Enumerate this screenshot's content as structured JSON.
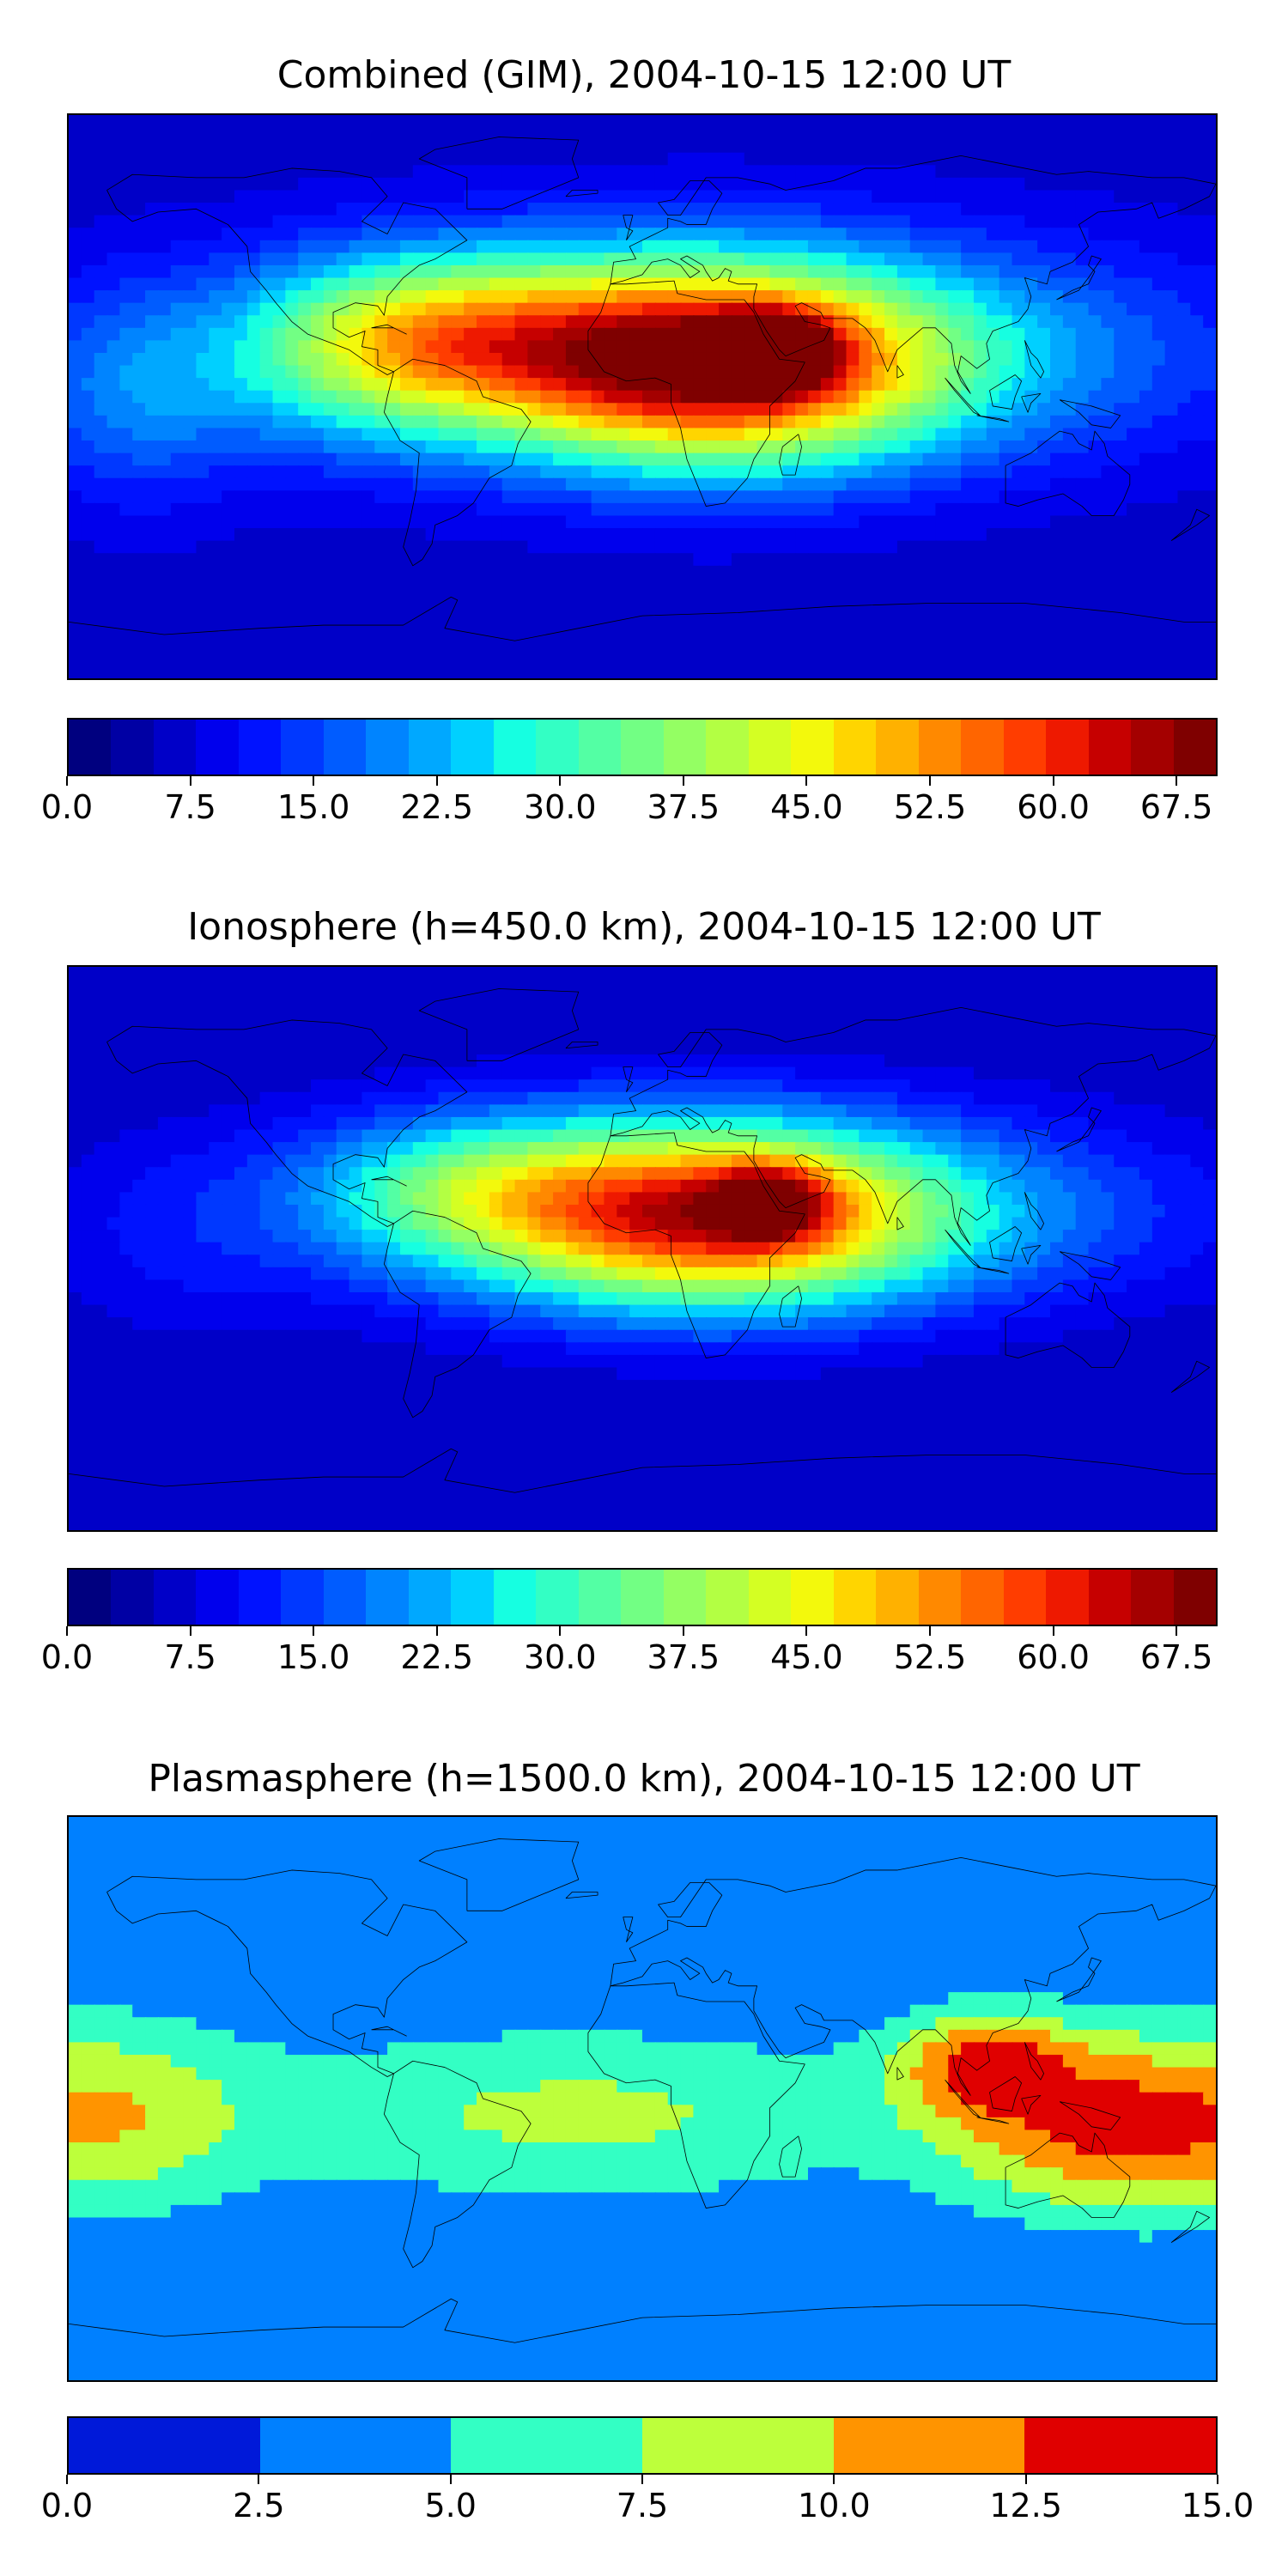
{
  "palette": [
    "#00007f",
    "#0000a4",
    "#0000c8",
    "#0000ed",
    "#0012ff",
    "#0038ff",
    "#005cff",
    "#0084ff",
    "#00a8ff",
    "#00d0ff",
    "#16ffe1",
    "#33ffc4",
    "#53ffa4",
    "#72ff84",
    "#94ff63",
    "#b3ff43",
    "#d4ff23",
    "#f3f90c",
    "#ffd500",
    "#ffb100",
    "#ff8900",
    "#ff6500",
    "#ff3d00",
    "#ee1900",
    "#c60000",
    "#a40000",
    "#7f0000"
  ],
  "panels": [
    {
      "title": "Combined (GIM), 2004-10-15 12:00 UT",
      "colorbar": {
        "min": 0,
        "max": 70,
        "step": 2.5,
        "ticks": [
          0.0,
          7.5,
          15.0,
          22.5,
          30.0,
          37.5,
          45.0,
          52.5,
          60.0,
          67.5
        ],
        "tick_labels": [
          "0.0",
          "7.5",
          "15.0",
          "22.5",
          "30.0",
          "37.5",
          "45.0",
          "52.5",
          "60.0",
          "67.5"
        ]
      },
      "field": {
        "base": 6,
        "blobs": [
          [
            22,
            10,
            48,
            22,
            44
          ],
          [
            42,
            15,
            12,
            8,
            28
          ],
          [
            25,
            14,
            100,
            25,
            22
          ],
          [
            -55,
            20,
            35,
            18,
            18
          ],
          [
            -90,
            15,
            30,
            20,
            14
          ],
          [
            -160,
            0,
            25,
            25,
            10
          ]
        ]
      }
    },
    {
      "title": "Ionosphere  (h=450.0 km), 2004-10-15 12:00 UT",
      "colorbar": {
        "min": 0,
        "max": 70,
        "step": 2.5,
        "ticks": [
          0.0,
          7.5,
          15.0,
          22.5,
          30.0,
          37.5,
          45.0,
          52.5,
          60.0,
          67.5
        ],
        "tick_labels": [
          "0.0",
          "7.5",
          "15.0",
          "22.5",
          "30.0",
          "37.5",
          "45.0",
          "52.5",
          "60.0",
          "67.5"
        ]
      },
      "field": {
        "base": 5,
        "blobs": [
          [
            22,
            10,
            48,
            20,
            38
          ],
          [
            40,
            15,
            12,
            8,
            22
          ],
          [
            25,
            12,
            95,
            22,
            20
          ],
          [
            -55,
            20,
            35,
            16,
            14
          ],
          [
            -150,
            0,
            25,
            25,
            3
          ]
        ]
      }
    },
    {
      "title": "Plasmasphere (h=1500.0 km), 2004-10-15 12:00 UT",
      "colorbar": {
        "min": 0,
        "max": 15,
        "step": 2.5,
        "ticks": [
          0.0,
          2.5,
          5.0,
          7.5,
          10.0,
          12.5,
          15.0
        ],
        "tick_labels": [
          "0.0",
          "2.5",
          "5.0",
          "7.5",
          "10.0",
          "12.5",
          "15.0"
        ],
        "colors": [
          "#0019d9",
          "#0080ff",
          "#33ffc4",
          "#bdff3b",
          "#ff9400",
          "#e00000"
        ]
      },
      "field": {
        "base": 2.6,
        "blobs": [
          [
            -175,
            -5,
            35,
            22,
            7.5
          ],
          [
            175,
            -5,
            35,
            22,
            7.5
          ],
          [
            108,
            12,
            20,
            12,
            9
          ],
          [
            135,
            -12,
            35,
            18,
            6
          ],
          [
            10,
            -5,
            60,
            20,
            3.5
          ],
          [
            -60,
            -5,
            60,
            20,
            3
          ]
        ]
      }
    }
  ]
}
